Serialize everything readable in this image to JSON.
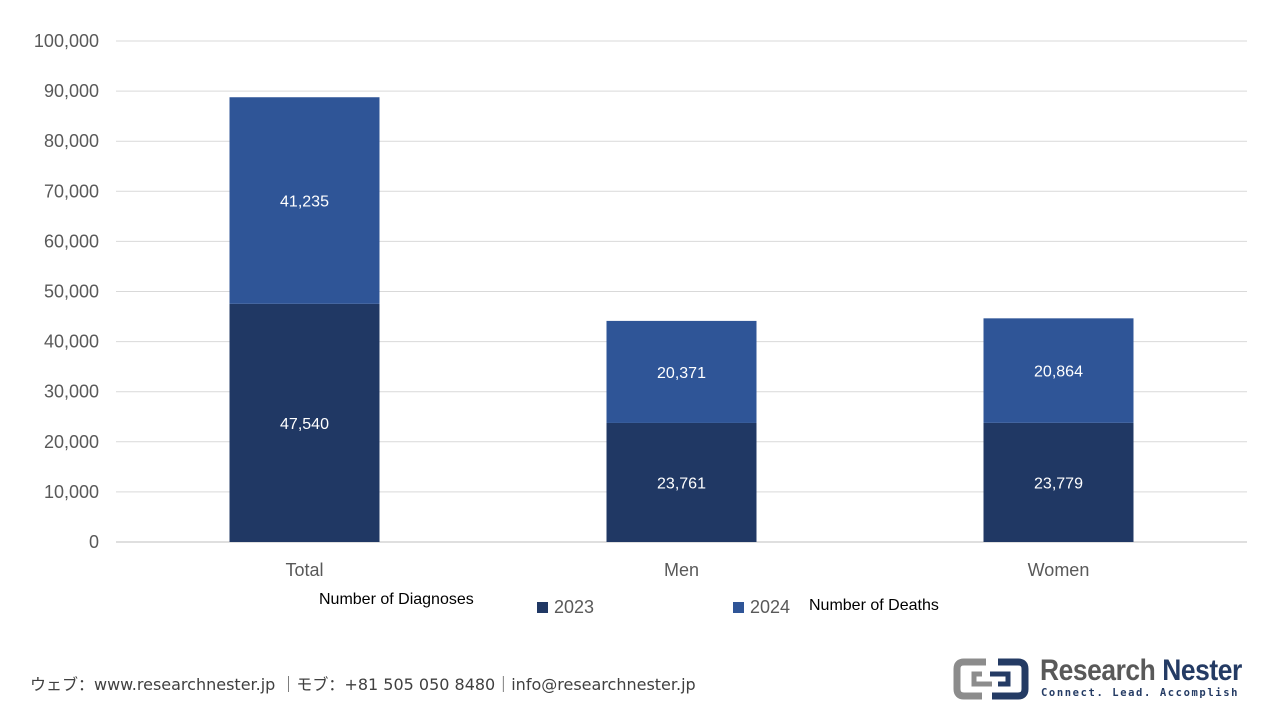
{
  "chart_data": {
    "type": "bar",
    "stacked": true,
    "categories": [
      "Total",
      "Men",
      "Women"
    ],
    "series": [
      {
        "name": "2023",
        "values": [
          47540,
          23761,
          23779
        ],
        "labels": [
          "47,540",
          "23,761",
          "23,779"
        ],
        "color": "#203864"
      },
      {
        "name": "2024",
        "values": [
          41235,
          20371,
          20864
        ],
        "labels": [
          "41,235",
          "20,371",
          "20,864"
        ],
        "color": "#2f5597"
      }
    ],
    "ylim": [
      0,
      100000
    ],
    "yticks": [
      0,
      10000,
      20000,
      30000,
      40000,
      50000,
      60000,
      70000,
      80000,
      90000,
      100000
    ],
    "ytick_labels": [
      "0",
      "10,000",
      "20,000",
      "30,000",
      "40,000",
      "50,000",
      "60,000",
      "70,000",
      "80,000",
      "90,000",
      "100,000"
    ],
    "grid": true,
    "legend": "bottom",
    "annotations": {
      "left": "Number of Diagnoses",
      "right": "Number of Deaths"
    }
  },
  "footer": {
    "contact": "ウェブ：www.researchnester.jp ｜モブ：+81 505 050 8480｜info@researchnester.jp"
  },
  "logo": {
    "name_part1": "Research",
    "name_part2": "Nester",
    "tagline": "Connect. Lead. Accomplish"
  }
}
